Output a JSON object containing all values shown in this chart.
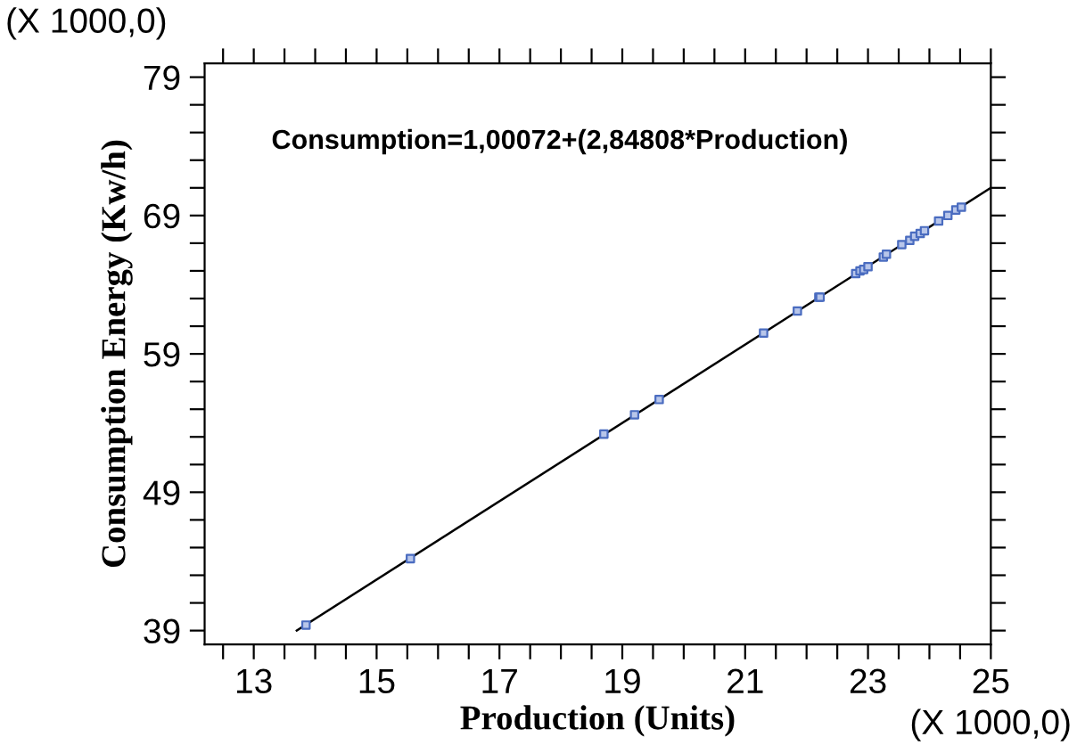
{
  "chart_data": {
    "type": "scatter",
    "xlabel": "Production (Units)",
    "ylabel": "Consumption Energy (Kw/h)",
    "annotations": [
      "Consumption=1,00072+(2,84808*Production)",
      "(X 1000,0)",
      "(X 1000,0)"
    ],
    "xlim": [
      12.2,
      25
    ],
    "ylim": [
      38,
      80
    ],
    "xticks": [
      {
        "value": 12.5,
        "label": null
      },
      13,
      {
        "value": 13.5,
        "label": null
      },
      {
        "value": 14,
        "label": null
      },
      {
        "value": 14.5,
        "label": null
      },
      15,
      {
        "value": 15.5,
        "label": null
      },
      {
        "value": 16,
        "label": null
      },
      {
        "value": 16.5,
        "label": null
      },
      17,
      {
        "value": 17.5,
        "label": null
      },
      {
        "value": 18,
        "label": null
      },
      {
        "value": 18.5,
        "label": null
      },
      19,
      {
        "value": 19.5,
        "label": null
      },
      {
        "value": 20,
        "label": null
      },
      {
        "value": 20.5,
        "label": null
      },
      21,
      {
        "value": 21.5,
        "label": null
      },
      {
        "value": 22,
        "label": null
      },
      {
        "value": 22.5,
        "label": null
      },
      23,
      {
        "value": 23.5,
        "label": null
      },
      {
        "value": 24,
        "label": null
      },
      {
        "value": 24.5,
        "label": null
      },
      25
    ],
    "yticks": [
      39,
      {
        "value": 41,
        "label": null
      },
      {
        "value": 43,
        "label": null
      },
      {
        "value": 45,
        "label": null
      },
      {
        "value": 47,
        "label": null
      },
      49,
      {
        "value": 51,
        "label": null
      },
      {
        "value": 53,
        "label": null
      },
      {
        "value": 55,
        "label": null
      },
      {
        "value": 57,
        "label": null
      },
      59,
      {
        "value": 61,
        "label": null
      },
      {
        "value": 63,
        "label": null
      },
      {
        "value": 65,
        "label": null
      },
      {
        "value": 67,
        "label": null
      },
      69,
      {
        "value": 71,
        "label": null
      },
      {
        "value": 73,
        "label": null
      },
      {
        "value": 75,
        "label": null
      },
      {
        "value": 77,
        "label": null
      },
      79
    ],
    "grid": false,
    "legend": false,
    "series": [
      {
        "marker": "square",
        "color": "#4a6cc0",
        "x": [
          13.85,
          15.55,
          18.7,
          19.2,
          19.6,
          21.3,
          21.85,
          22.2,
          22.22,
          22.8,
          22.87,
          22.93,
          23.0,
          23.25,
          23.3,
          23.55,
          23.68,
          23.76,
          23.85,
          23.92,
          24.15,
          24.3,
          24.43,
          24.52
        ],
        "values": [
          39.4,
          44.2,
          53.2,
          54.6,
          55.7,
          60.5,
          62.1,
          63.1,
          63.1,
          64.8,
          65.0,
          65.1,
          65.3,
          66.0,
          66.2,
          66.9,
          67.2,
          67.5,
          67.7,
          67.9,
          68.6,
          69.0,
          69.4,
          69.6
        ]
      },
      {
        "type": "line",
        "marker": "none",
        "line_style": "solid",
        "color": "#000000",
        "x": [
          13.7,
          25.0
        ],
        "values": [
          39.0,
          71.0
        ]
      }
    ]
  }
}
